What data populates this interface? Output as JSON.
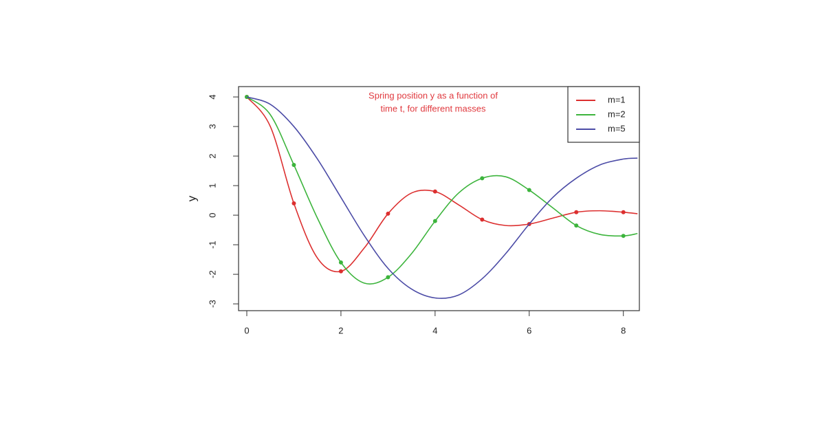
{
  "chart_data": {
    "type": "line",
    "title": [
      "Spring position y as a function of",
      "time t, for different masses"
    ],
    "title_color": "#e0393e",
    "y_label": "y",
    "x": [
      0,
      0.5,
      1,
      1.5,
      2,
      2.5,
      3,
      3.5,
      4,
      4.5,
      5,
      5.5,
      6,
      6.5,
      7,
      7.5,
      8,
      8.3
    ],
    "series": [
      {
        "name": "m=1",
        "color": "#dc2f2f",
        "markers": true,
        "values": [
          4,
          3.0,
          0.4,
          -1.45,
          -1.9,
          -1.1,
          0.05,
          0.75,
          0.8,
          0.35,
          -0.15,
          -0.35,
          -0.3,
          -0.1,
          0.1,
          0.15,
          0.1,
          0.05
        ]
      },
      {
        "name": "m=2",
        "color": "#3cb43c",
        "markers": true,
        "values": [
          4,
          3.4,
          1.7,
          -0.1,
          -1.6,
          -2.3,
          -2.1,
          -1.3,
          -0.2,
          0.75,
          1.25,
          1.3,
          0.85,
          0.25,
          -0.35,
          -0.65,
          -0.7,
          -0.62
        ]
      },
      {
        "name": "m=5",
        "color": "#4b4ba6",
        "markers": false,
        "values": [
          4,
          3.75,
          3.0,
          1.9,
          0.6,
          -0.7,
          -1.8,
          -2.5,
          -2.8,
          -2.7,
          -2.15,
          -1.3,
          -0.3,
          0.6,
          1.25,
          1.7,
          1.9,
          1.93
        ]
      }
    ],
    "xlim": [
      -0.175,
      8.34
    ],
    "ylim": [
      -3.23,
      4.35
    ],
    "xticks": [
      0,
      2,
      4,
      6,
      8
    ],
    "yticks": [
      -3,
      -2,
      -1,
      0,
      1,
      2,
      3,
      4
    ],
    "legend": "top-right"
  }
}
